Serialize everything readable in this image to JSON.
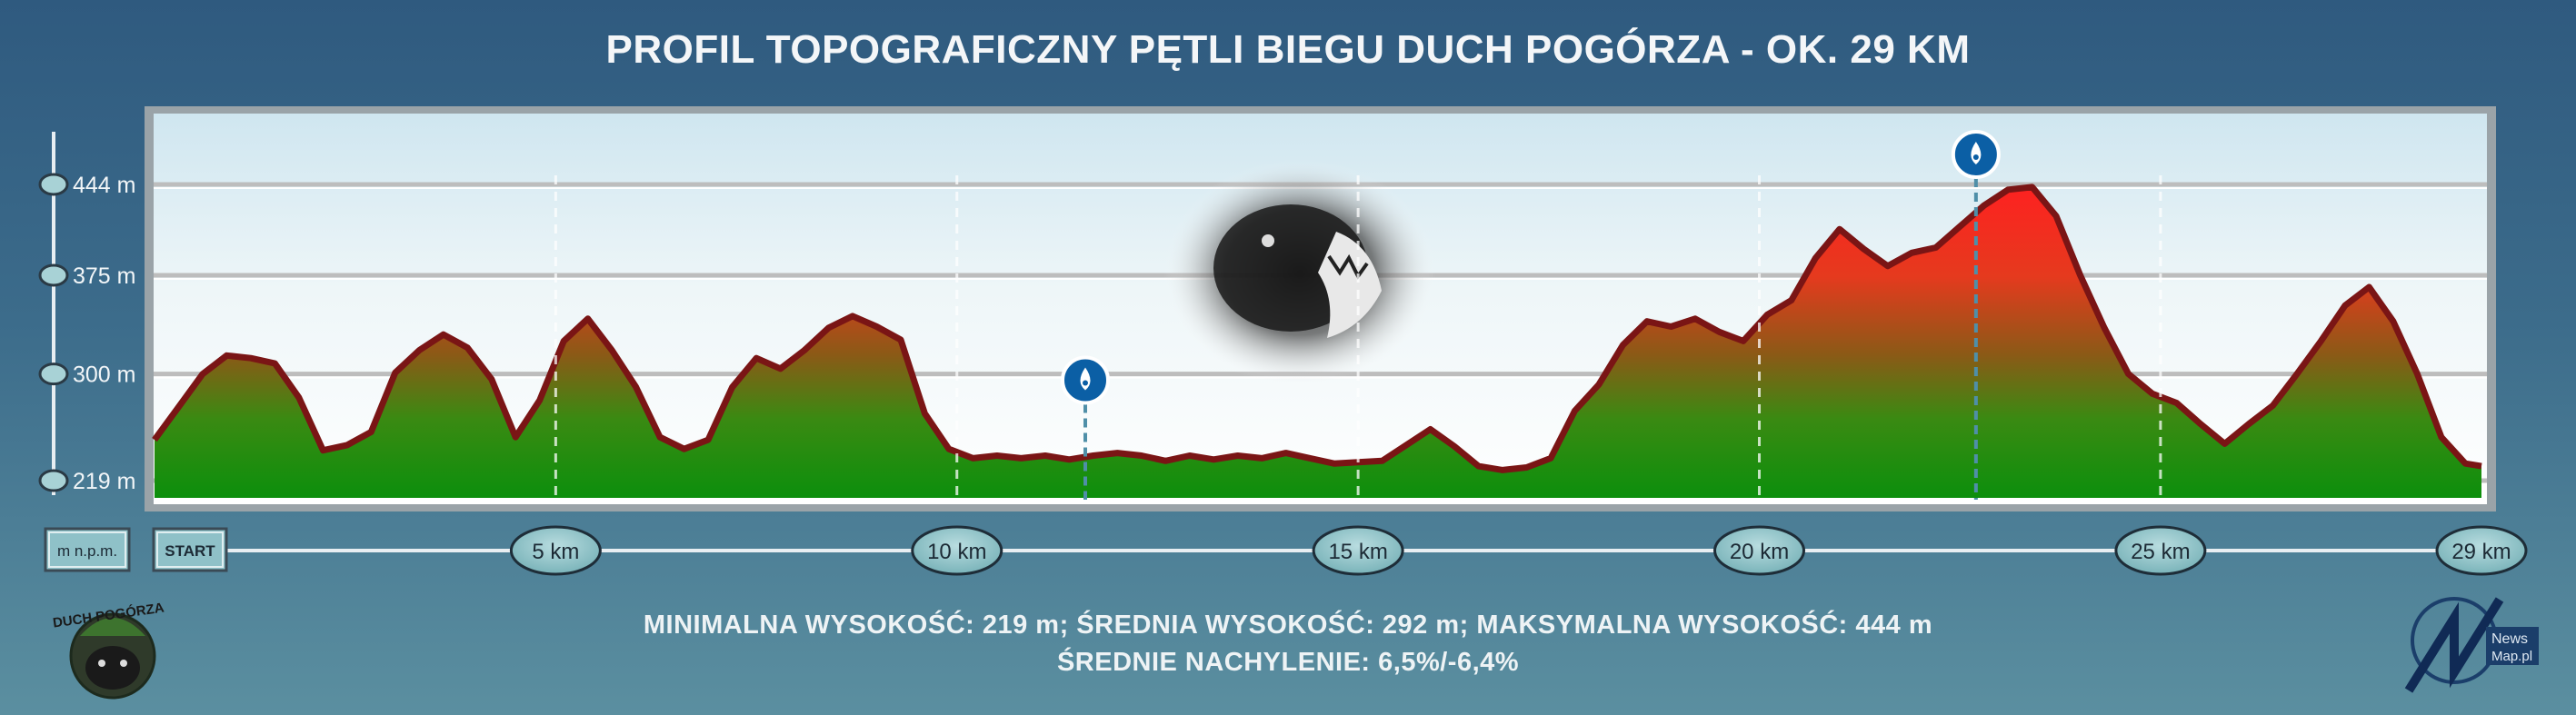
{
  "chart_data": {
    "type": "area",
    "title": "PROFIL TOPOGRAFICZNY PĘTLI BIEGU DUCH POGÓRZA - OK. 29 KM",
    "ylabel": "m n.p.m.",
    "xlim": [
      0,
      29
    ],
    "ylim": [
      205,
      470
    ],
    "yticks": [
      {
        "value": 219,
        "label": "219 m"
      },
      {
        "value": 300,
        "label": "300 m"
      },
      {
        "value": 375,
        "label": "375 m"
      },
      {
        "value": 444,
        "label": "444 m"
      }
    ],
    "xticks": [
      {
        "value": 5,
        "label": "5 km"
      },
      {
        "value": 10,
        "label": "10 km"
      },
      {
        "value": 15,
        "label": "15 km"
      },
      {
        "value": 20,
        "label": "20 km"
      },
      {
        "value": 25,
        "label": "25 km"
      },
      {
        "value": 29,
        "label": "29 km"
      }
    ],
    "start_label": "START",
    "water_points_km": [
      11.6,
      22.7
    ],
    "grid": true,
    "series": [
      {
        "x": [
          0,
          0.3,
          0.6,
          0.9,
          1.2,
          1.5,
          1.8,
          2.1,
          2.4,
          2.7,
          3.0,
          3.3,
          3.6,
          3.9,
          4.2,
          4.5,
          4.8,
          5.1,
          5.4,
          5.7,
          6.0,
          6.3,
          6.6,
          6.9,
          7.2,
          7.5,
          7.8,
          8.1,
          8.4,
          8.7,
          9.0,
          9.3,
          9.6,
          9.9,
          10.2,
          10.5,
          10.8,
          11.1,
          11.4,
          11.7,
          12.0,
          12.3,
          12.6,
          12.9,
          13.2,
          13.5,
          13.8,
          14.1,
          14.4,
          14.7,
          15.0,
          15.3,
          15.6,
          15.9,
          16.2,
          16.5,
          16.8,
          17.1,
          17.4,
          17.7,
          18.0,
          18.3,
          18.6,
          18.9,
          19.2,
          19.5,
          19.8,
          20.1,
          20.4,
          20.7,
          21.0,
          21.3,
          21.6,
          21.9,
          22.2,
          22.5,
          22.8,
          23.1,
          23.4,
          23.7,
          24.0,
          24.3,
          24.6,
          24.9,
          25.2,
          25.5,
          25.8,
          26.1,
          26.4,
          26.7,
          27.0,
          27.3,
          27.6,
          27.9,
          28.2,
          28.5,
          28.8,
          29.0
        ],
        "y": [
          250,
          275,
          300,
          314,
          312,
          308,
          282,
          242,
          246,
          256,
          301,
          318,
          330,
          320,
          296,
          252,
          280,
          325,
          342,
          318,
          290,
          252,
          243,
          250,
          290,
          312,
          304,
          318,
          335,
          344,
          336,
          326,
          270,
          243,
          236,
          238,
          236,
          238,
          235,
          238,
          240,
          238,
          234,
          238,
          235,
          238,
          236,
          240,
          236,
          232,
          233,
          234,
          246,
          258,
          245,
          230,
          227,
          229,
          236,
          272,
          292,
          322,
          340,
          336,
          342,
          332,
          325,
          345,
          356,
          388,
          410,
          395,
          382,
          392,
          396,
          412,
          428,
          440,
          442,
          420,
          375,
          335,
          300,
          285,
          278,
          262,
          247,
          262,
          276,
          300,
          325,
          352,
          366,
          340,
          300,
          252,
          232,
          230
        ]
      }
    ]
  },
  "axis_unit_box": "m n.p.m.",
  "stats": {
    "line1": "MINIMALNA WYSOKOŚĆ: 219 m; ŚREDNIA WYSOKOŚĆ: 292 m; MAKSYMALNA WYSOKOŚĆ: 444 m",
    "line2": "ŚREDNIE NACHYLENIE: 6,5%/-6,4%"
  },
  "logos": {
    "left": "DUCH POGÓRZA",
    "right_line1": "News",
    "right_line2": "Map.pl"
  },
  "colors": {
    "terrain_low": "#0f8a0f",
    "terrain_high": "#ff2a2a",
    "outline": "#7a1515",
    "panel_top": "#cde5ef",
    "water_marker": "#0b5fa5"
  },
  "icons": {
    "water": "water-drop-icon",
    "bear": "bear-head-icon"
  }
}
